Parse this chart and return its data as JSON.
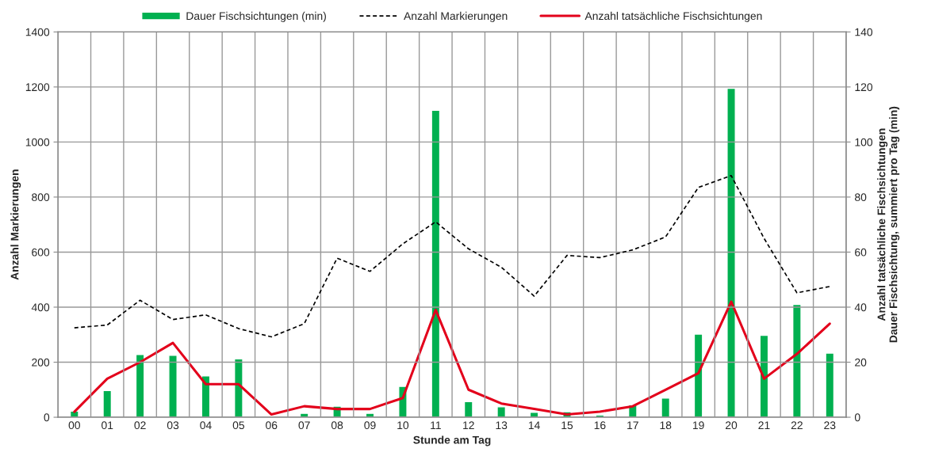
{
  "chart_data": {
    "type": "bar",
    "xlabel": "Stunde am Tag",
    "ylabel": "Anzahl Markierungen",
    "y2label": "Anzahl tatsächliche Fischsichtungen\nDauer Fischsichtung, summiert pro Tag (min)",
    "categories": [
      "00",
      "01",
      "02",
      "03",
      "04",
      "05",
      "06",
      "07",
      "08",
      "09",
      "10",
      "11",
      "12",
      "13",
      "14",
      "15",
      "16",
      "17",
      "18",
      "19",
      "20",
      "21",
      "22",
      "23"
    ],
    "series": [
      {
        "name": "Dauer Fischsichtungen (min)",
        "axis": "y2",
        "color": "#00b050",
        "values": [
          2.2,
          9.7,
          22.8,
          22.5,
          15,
          21.2,
          null,
          1.4,
          4,
          1.4,
          11.2,
          111.5,
          5.7,
          3.8,
          1.8,
          2,
          0.8,
          4.5,
          7,
          30.2,
          119.5,
          29.8,
          41,
          23.3
        ]
      },
      {
        "name": "Anzahl Markierungen",
        "type": "line",
        "color": "#000000",
        "line_style": "dashed",
        "values": [
          325,
          335,
          425,
          355,
          372,
          322,
          292,
          340,
          578,
          530,
          630,
          710,
          612,
          545,
          440,
          588,
          580,
          608,
          655,
          835,
          878,
          650,
          452,
          475
        ]
      },
      {
        "name": "Anzahl tatsächliche Fischsichtungen",
        "type": "line",
        "axis": "y2",
        "color": "#e3001b",
        "line_style": "solid",
        "values": [
          2,
          14,
          20,
          27,
          12,
          12,
          1,
          4,
          3,
          3,
          7,
          39,
          10,
          5,
          3,
          1,
          2,
          4,
          10,
          16,
          42,
          14,
          23,
          34
        ]
      }
    ],
    "ylim": [
      0,
      1400
    ],
    "yticks": [
      0,
      200,
      400,
      600,
      800,
      1000,
      1200,
      1400
    ],
    "y2lim": [
      0,
      140
    ],
    "y2ticks": [
      0,
      20,
      40,
      60,
      80,
      100,
      120,
      140
    ],
    "grid": true,
    "legend": "top"
  }
}
